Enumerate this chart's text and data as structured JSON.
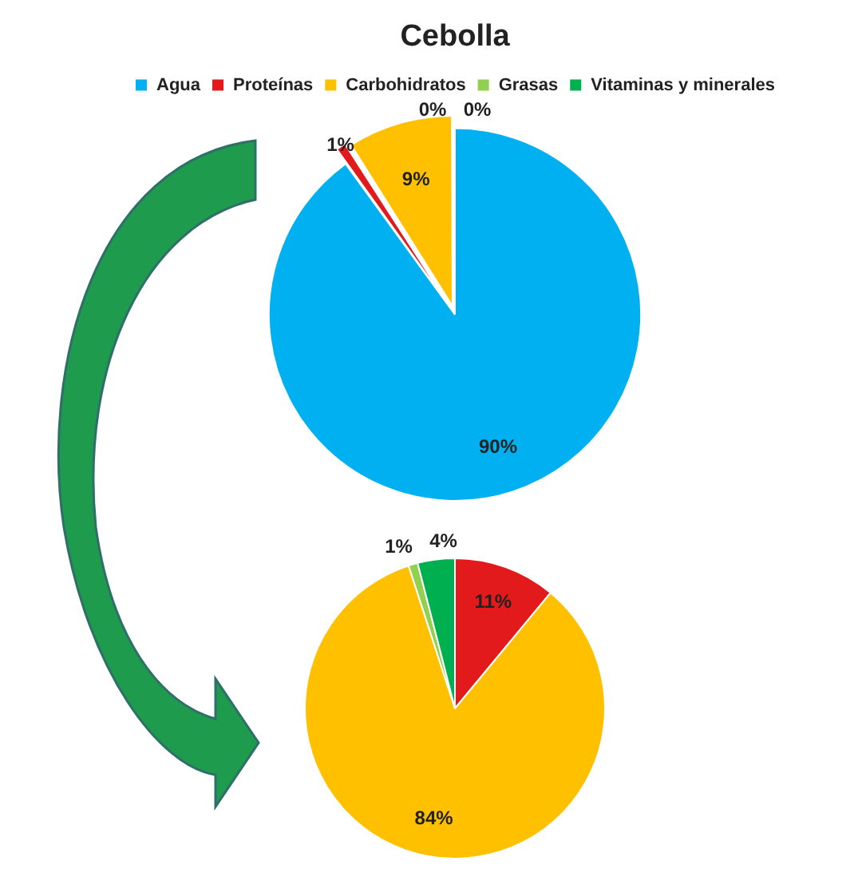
{
  "chart_data": [
    {
      "type": "pie",
      "title": "Cebolla",
      "categories": [
        "Agua",
        "Proteínas",
        "Carbohidratos",
        "Grasas",
        "Vitaminas y minerales"
      ],
      "values": [
        90,
        1,
        9,
        0,
        0
      ],
      "colors": [
        "#00b0f0",
        "#e31a1c",
        "#ffc000",
        "#92d050",
        "#00b050"
      ],
      "value_labels": [
        "90%",
        "1%",
        "9%",
        "0%",
        "0%"
      ],
      "legend": "top"
    },
    {
      "type": "pie",
      "categories": [
        null,
        null,
        null,
        null
      ],
      "values": [
        11,
        84,
        1,
        4
      ],
      "colors": [
        "#e31a1c",
        "#ffc000",
        "#92d050",
        "#00b050"
      ],
      "value_labels": [
        "11%",
        "84%",
        "1%",
        "4%"
      ],
      "legend": false
    }
  ]
}
